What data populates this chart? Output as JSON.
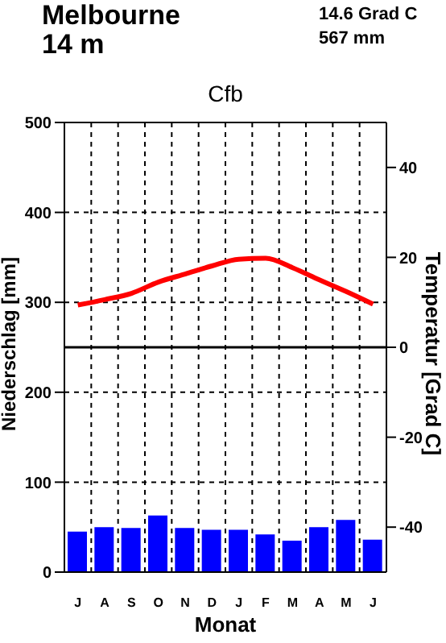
{
  "chart_data": {
    "type": "bar",
    "title": "Melbourne",
    "subtitle": "14 m",
    "annotations": [
      "14.6 Grad C",
      "567 mm",
      "Cfb"
    ],
    "xlabel": "Monat",
    "ylabel": "Niederschlag [mm]",
    "y2label": "Temperatur [Grad C]",
    "categories": [
      "J",
      "A",
      "S",
      "O",
      "N",
      "D",
      "J",
      "F",
      "M",
      "A",
      "M",
      "J"
    ],
    "series": [
      {
        "color": "#0000ff",
        "values": [
          45,
          50,
          49,
          63,
          49,
          47,
          47,
          42,
          35,
          50,
          58,
          36
        ]
      },
      {
        "type": "line",
        "axis": "y2",
        "color": "#ff0000",
        "values": [
          9.4,
          10.6,
          12.0,
          14.5,
          16.3,
          18.1,
          19.6,
          19.8,
          17.7,
          15.0,
          12.4,
          9.6
        ]
      }
    ],
    "ylim": [
      0,
      500
    ],
    "yticks": [
      0,
      100,
      200,
      300,
      400,
      500
    ],
    "y2lim": [
      -50,
      50
    ],
    "y2ticks": [
      -40,
      -20,
      0,
      20,
      40
    ],
    "ref_lines": [
      {
        "axis": "y2",
        "value": 0,
        "color": "#000000",
        "line_style": "solid"
      }
    ],
    "grid": true,
    "marker": "none",
    "line_style": "solid"
  }
}
